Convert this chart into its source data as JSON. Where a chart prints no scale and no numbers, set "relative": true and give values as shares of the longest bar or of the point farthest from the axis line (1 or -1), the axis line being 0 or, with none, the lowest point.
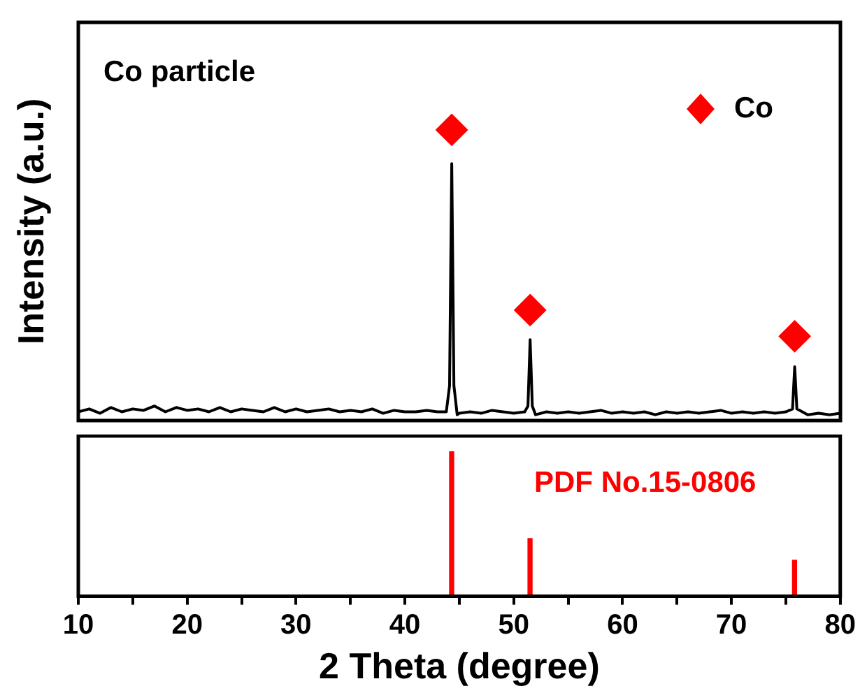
{
  "chart_data": [
    {
      "type": "line",
      "ylabel": "Intensity (a.u.)",
      "relative": true,
      "tick_labels": false,
      "xlim": [
        10,
        80
      ],
      "legend": "top right",
      "annotations": [
        "Co particle"
      ],
      "series": [
        {
          "color": "#000000",
          "x": [
            10,
            11,
            12,
            13,
            14,
            15,
            16,
            17,
            18,
            19,
            20,
            21,
            22,
            23,
            24,
            25,
            26,
            27,
            28,
            29,
            30,
            31,
            32,
            33,
            34,
            35,
            36,
            37,
            38,
            39,
            40,
            41,
            42,
            43,
            43.8,
            44.1,
            44.3,
            44.5,
            44.8,
            45,
            46,
            47,
            48,
            49,
            50,
            51,
            51.3,
            51.5,
            51.7,
            52,
            53,
            54,
            55,
            56,
            57,
            58,
            59,
            60,
            61,
            62,
            63,
            64,
            65,
            66,
            67,
            68,
            69,
            70,
            71,
            72,
            73,
            74,
            75,
            75.6,
            75.8,
            76,
            77,
            78,
            79,
            80
          ],
          "values": [
            0.03,
            0.04,
            0.025,
            0.045,
            0.03,
            0.04,
            0.035,
            0.05,
            0.03,
            0.045,
            0.035,
            0.04,
            0.03,
            0.045,
            0.03,
            0.04,
            0.035,
            0.03,
            0.045,
            0.03,
            0.04,
            0.03,
            0.035,
            0.04,
            0.03,
            0.035,
            0.03,
            0.04,
            0.025,
            0.035,
            0.03,
            0.03,
            0.035,
            0.03,
            0.03,
            0.12,
            0.884,
            0.12,
            0.02,
            0.025,
            0.03,
            0.025,
            0.035,
            0.03,
            0.025,
            0.03,
            0.05,
            0.278,
            0.05,
            0.02,
            0.03,
            0.025,
            0.03,
            0.025,
            0.03,
            0.035,
            0.025,
            0.03,
            0.025,
            0.03,
            0.02,
            0.03,
            0.025,
            0.03,
            0.025,
            0.03,
            0.035,
            0.025,
            0.03,
            0.025,
            0.03,
            0.025,
            0.03,
            0.04,
            0.185,
            0.04,
            0.02,
            0.025,
            0.02,
            0.025
          ]
        },
        {
          "type": "scatter",
          "name": "Co",
          "color": "#ff0000",
          "marker": "diamond",
          "x": [
            44.3,
            51.5,
            75.8
          ],
          "values": [
            1,
            0.38,
            0.29
          ]
        }
      ]
    },
    {
      "type": "bar",
      "xlabel": "2 Theta (degree)",
      "relative": true,
      "xlim": [
        10,
        80
      ],
      "xticks": [
        10,
        {
          "value": 15,
          "label": null
        },
        20,
        {
          "value": 25,
          "label": null
        },
        30,
        {
          "value": 35,
          "label": null
        },
        40,
        {
          "value": 45,
          "label": null
        },
        50,
        {
          "value": 55,
          "label": null
        },
        60,
        {
          "value": 65,
          "label": null
        },
        70,
        {
          "value": 75,
          "label": null
        },
        80
      ],
      "annotations": [
        "PDF No.15-0806"
      ],
      "x": [
        44.3,
        51.5,
        75.8
      ],
      "values": [
        1,
        0.4,
        0.25
      ],
      "color": "#ff0000"
    }
  ]
}
